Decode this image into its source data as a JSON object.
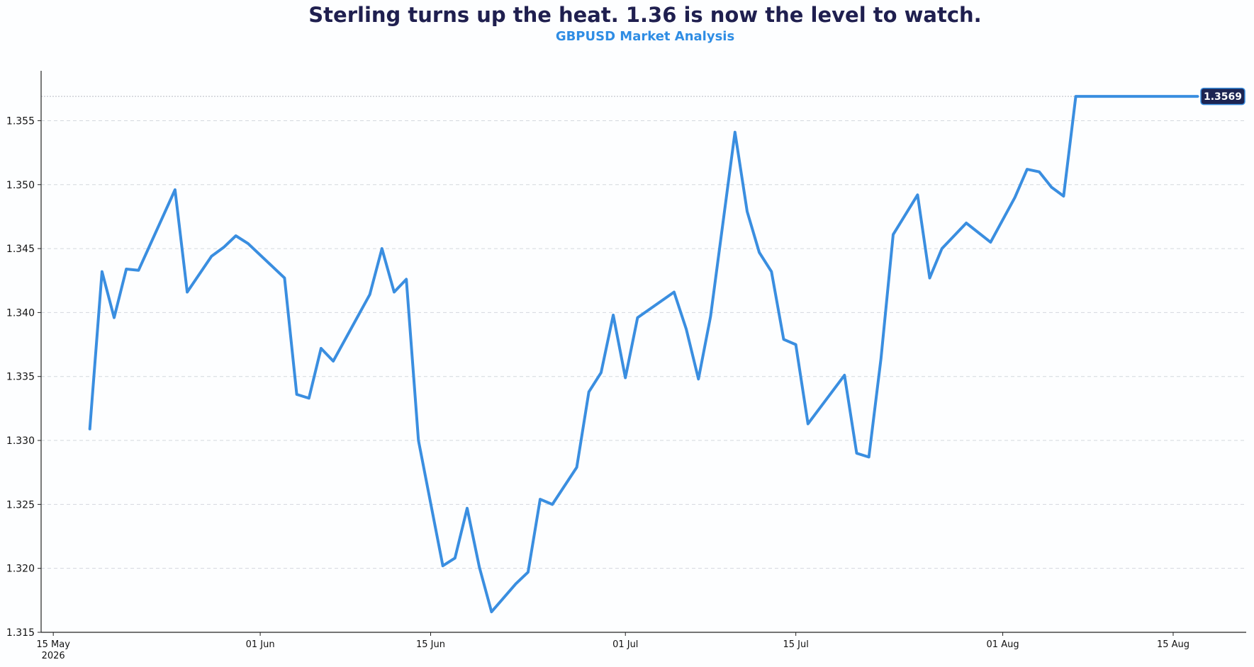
{
  "title": "Sterling turns up the heat.  1.36 is now the level to watch.",
  "subtitle": "GBPUSD Market Analysis",
  "colors": {
    "line": "#3a8ee0",
    "title": "#1f1f4f",
    "subtitle": "#2f8de4",
    "badge_bg": "#1c2452",
    "grid": "#d4d8de",
    "axis": "#222222"
  },
  "chart_data": {
    "type": "line",
    "title": "Sterling turns up the heat.  1.36 is now the level to watch.",
    "subtitle": "GBPUSD Market Analysis",
    "xlabel": "",
    "ylabel": "",
    "xlim": [
      "2026-05-14",
      "2026-08-21"
    ],
    "ylim": [
      1.315,
      1.3589
    ],
    "yticks": [
      1.315,
      1.32,
      1.325,
      1.33,
      1.335,
      1.34,
      1.345,
      1.35,
      1.355
    ],
    "ytick_labels": [
      "1.315",
      "1.320",
      "1.325",
      "1.330",
      "1.335",
      "1.340",
      "1.345",
      "1.350",
      "1.355"
    ],
    "xticks": [
      {
        "date": "2026-05-15",
        "label": "15 May",
        "sublabel": "2026"
      },
      {
        "date": "2026-06-01",
        "label": "01 Jun",
        "sublabel": ""
      },
      {
        "date": "2026-06-15",
        "label": "15 Jun",
        "sublabel": ""
      },
      {
        "date": "2026-07-01",
        "label": "01 Jul",
        "sublabel": ""
      },
      {
        "date": "2026-07-15",
        "label": "15 Jul",
        "sublabel": ""
      },
      {
        "date": "2026-08-01",
        "label": "01 Aug",
        "sublabel": ""
      },
      {
        "date": "2026-08-15",
        "label": "15 Aug",
        "sublabel": ""
      }
    ],
    "grid": "horizontal dashed",
    "reference_line": {
      "y": 1.3569,
      "style": "dotted"
    },
    "last_value_label": "1.3569",
    "series": [
      {
        "x": [
          "2026-05-18",
          "2026-05-19",
          "2026-05-20",
          "2026-05-21",
          "2026-05-22",
          "2026-05-25",
          "2026-05-26",
          "2026-05-28",
          "2026-05-29",
          "2026-05-30",
          "2026-05-31",
          "2026-06-03",
          "2026-06-04",
          "2026-06-05",
          "2026-06-06",
          "2026-06-07",
          "2026-06-10",
          "2026-06-11",
          "2026-06-12",
          "2026-06-13",
          "2026-06-14",
          "2026-06-16",
          "2026-06-17",
          "2026-06-18",
          "2026-06-19",
          "2026-06-20",
          "2026-06-22",
          "2026-06-23",
          "2026-06-24",
          "2026-06-25",
          "2026-06-27",
          "2026-06-28",
          "2026-06-29",
          "2026-06-30",
          "2026-07-01",
          "2026-07-02",
          "2026-07-05",
          "2026-07-06",
          "2026-07-07",
          "2026-07-08",
          "2026-07-10",
          "2026-07-11",
          "2026-07-12",
          "2026-07-13",
          "2026-07-14",
          "2026-07-15",
          "2026-07-16",
          "2026-07-19",
          "2026-07-20",
          "2026-07-21",
          "2026-07-22",
          "2026-07-23",
          "2026-07-25",
          "2026-07-26",
          "2026-07-27",
          "2026-07-29",
          "2026-07-31",
          "2026-08-02",
          "2026-08-03",
          "2026-08-04",
          "2026-08-05",
          "2026-08-06",
          "2026-08-07",
          "2026-08-09",
          "2026-08-10",
          "2026-08-11",
          "2026-08-12",
          "2026-08-13",
          "2026-08-17"
        ],
        "values": [
          1.3309,
          1.3432,
          1.3396,
          1.3434,
          1.3433,
          1.3496,
          1.3416,
          1.3444,
          1.3451,
          1.346,
          1.3454,
          1.3427,
          1.3336,
          1.3333,
          1.3372,
          1.3362,
          1.3414,
          1.345,
          1.3416,
          1.3426,
          1.33,
          1.3202,
          1.3208,
          1.3247,
          1.3201,
          1.3166,
          1.3188,
          1.3197,
          1.3254,
          1.325,
          1.3279,
          1.3338,
          1.3353,
          1.3398,
          1.3349,
          1.3396,
          1.3416,
          1.3387,
          1.3348,
          1.3397,
          1.3541,
          1.3479,
          1.3447,
          1.3432,
          1.3379,
          1.3375,
          1.3313,
          1.3351,
          1.329,
          1.3287,
          1.3364,
          1.3461,
          1.3492,
          1.3427,
          1.345,
          1.347,
          1.3455,
          1.349,
          1.3512,
          1.351,
          1.3498,
          1.3491,
          1.3569,
          1.3569,
          1.3569,
          1.3569,
          1.3569,
          1.3569,
          1.3569
        ]
      }
    ]
  }
}
